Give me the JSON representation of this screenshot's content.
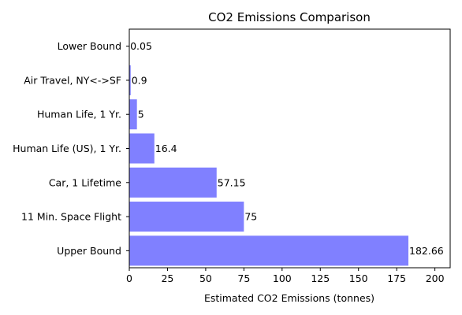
{
  "chart_data": {
    "type": "bar",
    "orientation": "horizontal",
    "title": "CO2 Emissions Comparison",
    "xlabel": "Estimated CO2 Emissions (tonnes)",
    "ylabel": "",
    "categories": [
      "Upper Bound",
      "11 Min. Space Flight",
      "Car, 1 Lifetime",
      "Human Life (US), 1 Yr.",
      "Human Life, 1 Yr.",
      "Air Travel, NY<->SF",
      "Lower Bound"
    ],
    "values": [
      182.66,
      75,
      57.15,
      16.4,
      5,
      0.9,
      0.05
    ],
    "data_labels": [
      "182.66",
      "75",
      "57.15",
      "16.4",
      "5",
      "0.9",
      "0.05"
    ],
    "xlim": [
      0,
      210
    ],
    "xticks": [
      0,
      25,
      50,
      75,
      100,
      125,
      150,
      175,
      200
    ],
    "bar_color": "#8080ff",
    "grid": false,
    "legend": "none"
  }
}
